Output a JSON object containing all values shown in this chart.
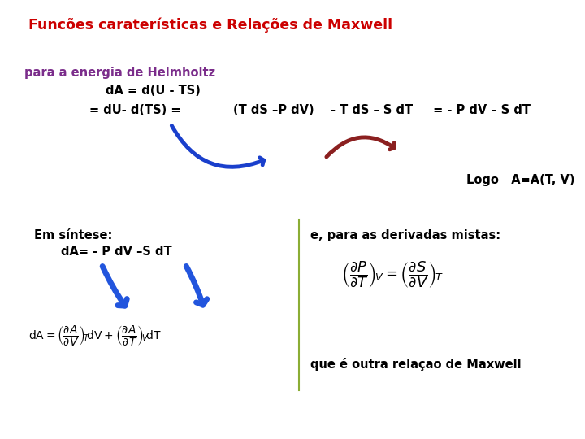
{
  "title": "Funcões caraterísticas e Relações de Maxwell",
  "title_color": "#CC0000",
  "bg_color": "#FFFFFF",
  "top_box_bg": "#EEFFCC",
  "top_box_edge": "#8BAD35",
  "bottom_box_bg": "#EEFFCC",
  "bottom_box_edge": "#8BAD35",
  "purple_label": "para a energia de Helmholtz",
  "line1": "dA = d(U - TS)",
  "line2_pre": "= dU- d(TS) = ",
  "box1_text": "(T dS –P dV)",
  "box2_text": "- T dS – S dT",
  "post_text": " = - P dV – S dT",
  "logo_text": "Logo   A=A(T, V)",
  "em_sintese": "Em síntese:",
  "da_line": "dA= - P dV –S dT",
  "e_para": "e, para as derivadas mistas:",
  "que_e": "que é outra relação de Maxwell"
}
